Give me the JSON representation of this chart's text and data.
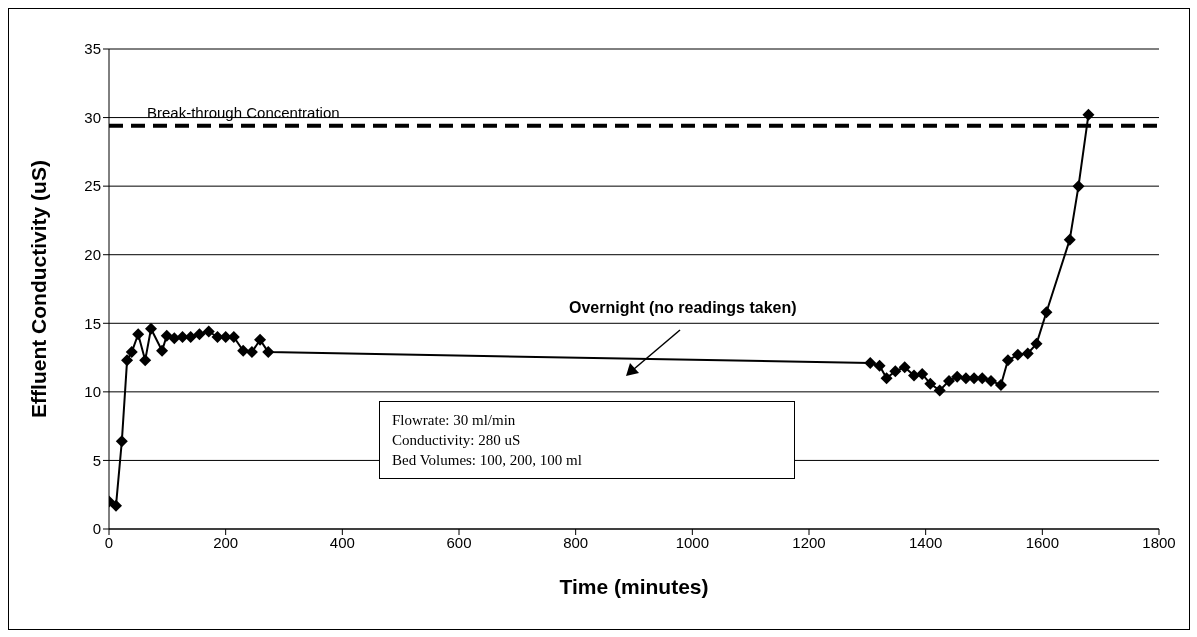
{
  "chart_data": {
    "type": "line",
    "xlabel": "Time (minutes)",
    "ylabel": "Effluent Conductivity (uS)",
    "x": [
      0,
      12,
      22,
      31,
      39,
      50,
      62,
      72,
      91,
      99,
      112,
      126,
      140,
      155,
      171,
      186,
      200,
      214,
      230,
      245,
      259,
      273,
      1305,
      1321,
      1333,
      1348,
      1364,
      1380,
      1394,
      1408,
      1424,
      1440,
      1454,
      1469,
      1483,
      1497,
      1512,
      1529,
      1541,
      1558,
      1575,
      1590,
      1607,
      1647,
      1662,
      1679
    ],
    "series": [
      {
        "color": "#000000",
        "values": [
          2.0,
          1.7,
          6.4,
          12.3,
          12.9,
          14.2,
          12.3,
          14.6,
          13.0,
          14.1,
          13.9,
          14.0,
          14.0,
          14.2,
          14.4,
          14.0,
          14.0,
          14.0,
          13.0,
          12.9,
          13.8,
          12.9,
          12.1,
          11.9,
          11.0,
          11.5,
          11.8,
          11.2,
          11.3,
          10.6,
          10.1,
          10.8,
          11.1,
          11.0,
          11.0,
          11.0,
          10.8,
          10.5,
          12.3,
          12.7,
          12.8,
          13.5,
          15.8,
          21.1,
          25.0,
          30.2
        ]
      }
    ],
    "xlim": [
      0,
      1800
    ],
    "xticks": [
      0,
      200,
      400,
      600,
      800,
      1000,
      1200,
      1400,
      1600,
      1800
    ],
    "ylim": [
      0,
      35
    ],
    "yticks": [
      0,
      5,
      10,
      15,
      20,
      25,
      30,
      35
    ],
    "grid": "y",
    "marker": "diamond",
    "line_style": "solid",
    "legend": false,
    "ref_lines": [
      {
        "axis": "y",
        "value": 29.4,
        "label": "Break-through Concentration",
        "color": "#000000",
        "line_style": "dashed"
      }
    ],
    "annotations": [
      "Overnight (no readings taken)",
      "Flowrate: 30 ml/min",
      "Conductivity: 280 uS",
      "Bed Volumes: 100, 200, 100  ml"
    ]
  }
}
